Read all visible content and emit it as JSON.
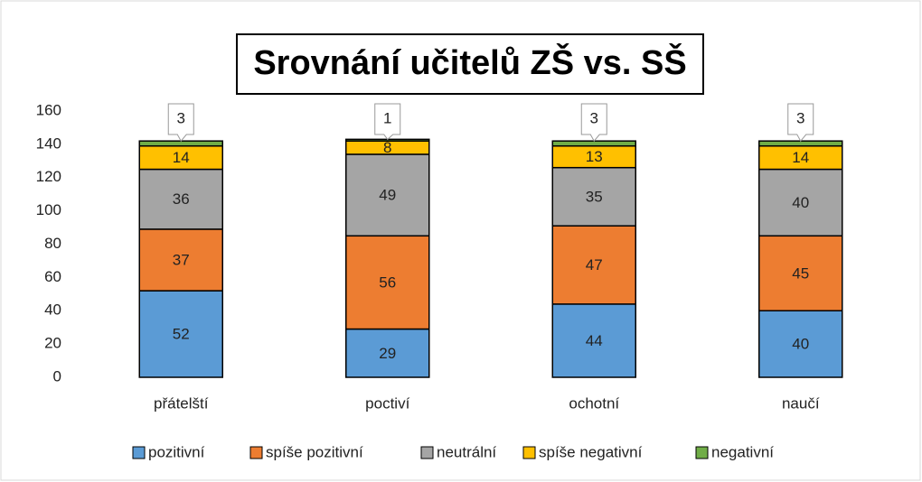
{
  "chart_data": {
    "type": "stacked_bar",
    "title": "Srovnání učitelů ZŠ vs. SŠ",
    "categories": [
      "přátelští",
      "poctiví",
      "ochotní",
      "naučí"
    ],
    "series": [
      {
        "name": "pozitivní",
        "color": "#5b9bd5",
        "values": [
          52,
          29,
          44,
          40
        ]
      },
      {
        "name": "spíše pozitivní",
        "color": "#ed7d31",
        "values": [
          37,
          56,
          47,
          45
        ]
      },
      {
        "name": "neutrální",
        "color": "#a5a5a5",
        "values": [
          36,
          49,
          35,
          40
        ]
      },
      {
        "name": "spíše negativní",
        "color": "#ffc000",
        "values": [
          14,
          8,
          13,
          14
        ]
      },
      {
        "name": "negativní",
        "color": "#70ad47",
        "values": [
          3,
          1,
          3,
          3
        ]
      }
    ],
    "ylim": [
      0,
      160
    ],
    "yticks": [
      0,
      20,
      40,
      60,
      80,
      100,
      120,
      140,
      160
    ],
    "legend": "bottom"
  }
}
